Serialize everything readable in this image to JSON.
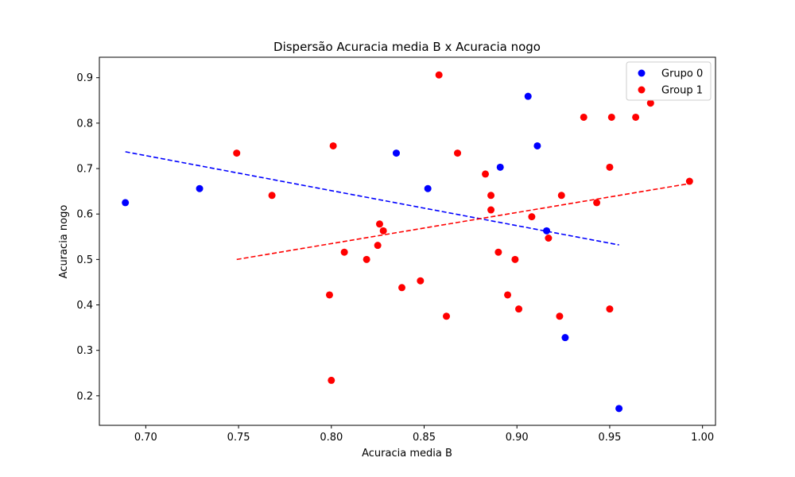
{
  "chart_data": {
    "type": "scatter",
    "title": "Dispersão Acuracia media B x Acuracia nogo",
    "xlabel": "Acuracia media B",
    "ylabel": "Acuracia nogo",
    "xlim": [
      0.675,
      1.007
    ],
    "ylim": [
      0.135,
      0.945
    ],
    "xticks": [
      0.7,
      0.75,
      0.8,
      0.85,
      0.9,
      0.95,
      1.0
    ],
    "xtick_labels": [
      "0.70",
      "0.75",
      "0.80",
      "0.85",
      "0.90",
      "0.95",
      "1.00"
    ],
    "yticks": [
      0.2,
      0.3,
      0.4,
      0.5,
      0.6,
      0.7,
      0.8,
      0.9
    ],
    "ytick_labels": [
      "0.2",
      "0.3",
      "0.4",
      "0.5",
      "0.6",
      "0.7",
      "0.8",
      "0.9"
    ],
    "grid": false,
    "legend_position": "top-right",
    "series": [
      {
        "name": "Grupo 0",
        "color": "#0000ff",
        "points": [
          [
            0.689,
            0.625
          ],
          [
            0.729,
            0.656
          ],
          [
            0.835,
            0.734
          ],
          [
            0.852,
            0.656
          ],
          [
            0.891,
            0.703
          ],
          [
            0.906,
            0.859
          ],
          [
            0.911,
            0.75
          ],
          [
            0.916,
            0.563
          ],
          [
            0.926,
            0.328
          ],
          [
            0.955,
            0.172
          ]
        ],
        "trendline": {
          "x": [
            0.689,
            0.955
          ],
          "y": [
            0.737,
            0.532
          ],
          "style": "dashed"
        }
      },
      {
        "name": "Group 1",
        "color": "#ff0000",
        "points": [
          [
            0.749,
            0.734
          ],
          [
            0.768,
            0.641
          ],
          [
            0.799,
            0.422
          ],
          [
            0.8,
            0.234
          ],
          [
            0.801,
            0.75
          ],
          [
            0.807,
            0.516
          ],
          [
            0.819,
            0.5
          ],
          [
            0.825,
            0.531
          ],
          [
            0.826,
            0.578
          ],
          [
            0.828,
            0.563
          ],
          [
            0.838,
            0.438
          ],
          [
            0.848,
            0.453
          ],
          [
            0.858,
            0.906
          ],
          [
            0.862,
            0.375
          ],
          [
            0.868,
            0.734
          ],
          [
            0.883,
            0.688
          ],
          [
            0.886,
            0.609
          ],
          [
            0.886,
            0.641
          ],
          [
            0.89,
            0.516
          ],
          [
            0.895,
            0.422
          ],
          [
            0.899,
            0.5
          ],
          [
            0.901,
            0.391
          ],
          [
            0.908,
            0.594
          ],
          [
            0.917,
            0.547
          ],
          [
            0.923,
            0.375
          ],
          [
            0.924,
            0.641
          ],
          [
            0.936,
            0.813
          ],
          [
            0.943,
            0.625
          ],
          [
            0.95,
            0.703
          ],
          [
            0.95,
            0.391
          ],
          [
            0.951,
            0.813
          ],
          [
            0.964,
            0.813
          ],
          [
            0.972,
            0.844
          ],
          [
            0.993,
            0.672
          ]
        ],
        "trendline": {
          "x": [
            0.749,
            0.993
          ],
          "y": [
            0.5,
            0.667
          ],
          "style": "dashed"
        }
      }
    ]
  }
}
